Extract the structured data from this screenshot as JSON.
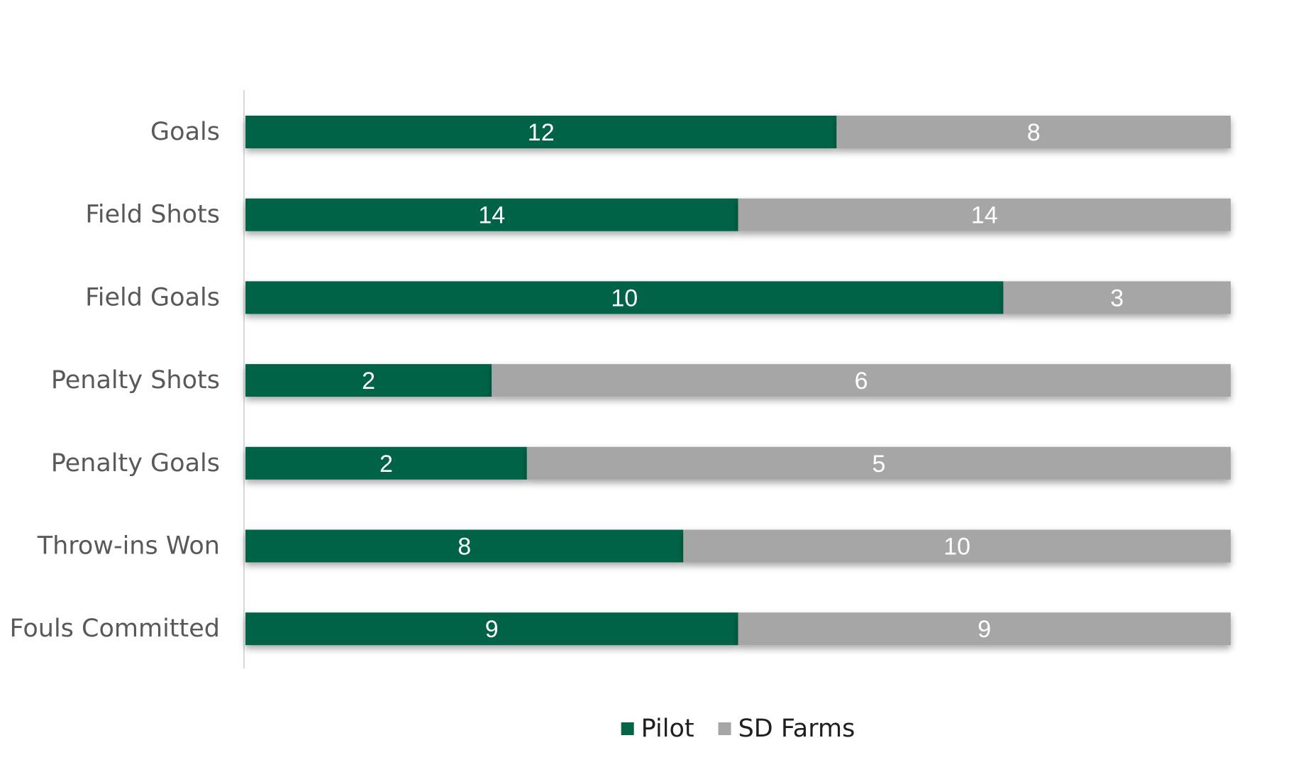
{
  "chart_data": {
    "type": "bar",
    "orientation": "horizontal",
    "stacking": "percent",
    "categories": [
      "Goals",
      "Field Shots",
      "Field Goals",
      "Penalty Shots",
      "Penalty Goals",
      "Throw-ins Won",
      "Fouls Committed"
    ],
    "series": [
      {
        "name": "Pilot",
        "color": "#066446",
        "values": [
          12,
          14,
          10,
          2,
          2,
          8,
          9
        ]
      },
      {
        "name": "SD Farms",
        "color": "#a6a6a6",
        "values": [
          8,
          14,
          3,
          6,
          5,
          10,
          9
        ]
      }
    ],
    "data_labels": true,
    "grid": false,
    "legend": "bottom",
    "title": "",
    "xlabel": "",
    "ylabel": ""
  }
}
